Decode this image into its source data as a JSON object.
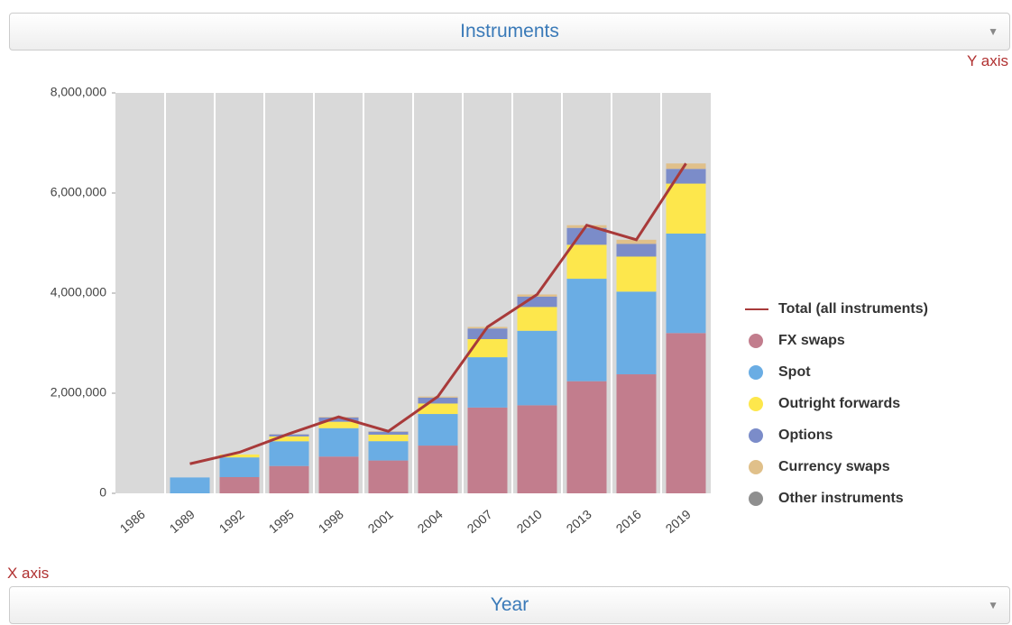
{
  "header": {
    "dropdown": "Instruments",
    "y_axis_label": "Y axis"
  },
  "chart_data": {
    "type": "bar",
    "categories": [
      "1986",
      "1989",
      "1992",
      "1995",
      "1998",
      "2001",
      "2004",
      "2007",
      "2010",
      "2013",
      "2016",
      "2019"
    ],
    "series": [
      {
        "name": "FX swaps",
        "color": "#c27d8d",
        "values": [
          null,
          null,
          324000,
          546000,
          734000,
          656000,
          954000,
          1714000,
          1759000,
          2240000,
          2378000,
          3202000
        ]
      },
      {
        "name": "Spot",
        "color": "#6aade4",
        "values": [
          null,
          317000,
          394000,
          494000,
          568000,
          386000,
          631000,
          1005000,
          1489000,
          2047000,
          1652000,
          1987000
        ]
      },
      {
        "name": "Outright forwards",
        "color": "#fde74c",
        "values": [
          null,
          null,
          58000,
          97000,
          128000,
          130000,
          209000,
          362000,
          475000,
          679000,
          700000,
          999000
        ]
      },
      {
        "name": "Options",
        "color": "#7b8cc9",
        "values": [
          null,
          null,
          null,
          41000,
          87000,
          60000,
          119000,
          212000,
          207000,
          337000,
          254000,
          294000
        ]
      },
      {
        "name": "Currency swaps",
        "color": "#e0c08a",
        "values": [
          null,
          null,
          null,
          4000,
          10000,
          7000,
          21000,
          31000,
          43000,
          54000,
          82000,
          108000
        ]
      },
      {
        "name": "Other instruments",
        "color": "#8f8f8f",
        "values": [
          null,
          null,
          null,
          null,
          null,
          null,
          null,
          null,
          null,
          null,
          null,
          null
        ]
      }
    ],
    "line": {
      "name": "Total (all instruments)",
      "color": "#a83a3a",
      "values": [
        null,
        590000,
        820000,
        1190000,
        1527000,
        1239000,
        1934000,
        3324000,
        3973000,
        5357000,
        5066000,
        6590000
      ]
    },
    "ylim": [
      0,
      8000000
    ],
    "yticks": [
      0,
      {
        "value": 2000000,
        "label": "2,000,000"
      },
      {
        "value": 4000000,
        "label": "4,000,000"
      },
      {
        "value": 6000000,
        "label": "6,000,000"
      },
      {
        "value": 8000000,
        "label": "8,000,000"
      }
    ],
    "grid": true
  },
  "footer": {
    "x_axis_label": "X axis",
    "dropdown": "Year"
  }
}
